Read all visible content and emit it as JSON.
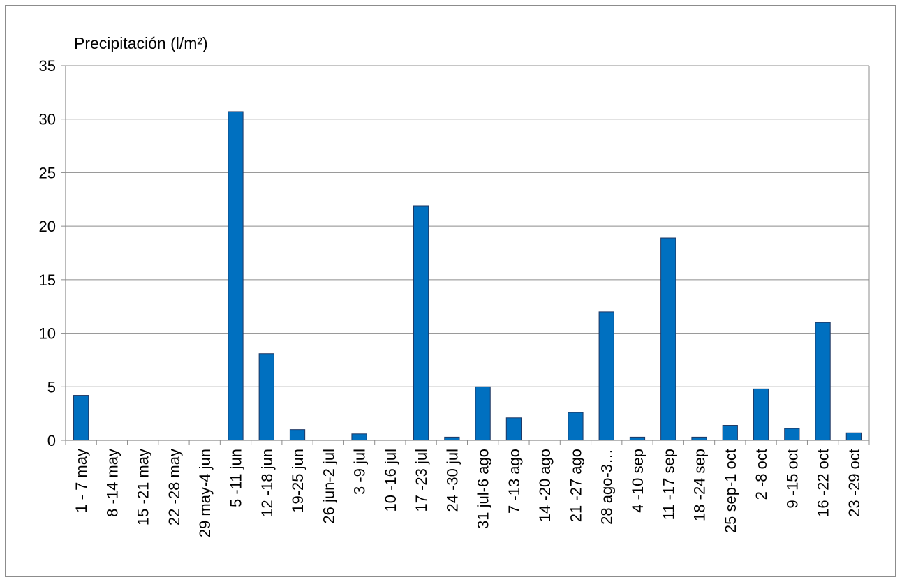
{
  "chart_data": {
    "type": "bar",
    "title": "",
    "ylabel": "Precipitación (l/m²)",
    "xlabel": "",
    "ylim": [
      0,
      35
    ],
    "yticks": [
      0,
      5,
      10,
      15,
      20,
      25,
      30,
      35
    ],
    "grid": true,
    "legend": "none",
    "bar_color": "#0070C0",
    "bar_edge_color": "#1F3864",
    "categories": [
      "1 - 7 may",
      "8 -14 may",
      "15 -21 may",
      "22 -28 may",
      "29 may-4 jun",
      "5 -11 jun",
      "12 -18 jun",
      "19-25 jun",
      "26 jun-2 jul",
      "3 -9 jul",
      "10 -16 jul",
      "17 -23 jul",
      "24 -30 jul",
      "31 jul-6 ago",
      "7 -13 ago",
      "14 -20 ago",
      "21 -27 ago",
      "28 ago-3…",
      "4 -10 sep",
      "11 -17 sep",
      "18 -24 sep",
      "25 sep-1 oct",
      "2 -8 oct",
      "9 -15 oct",
      "16 -22 oct",
      "23 -29 oct"
    ],
    "values": [
      4.2,
      0,
      0,
      0,
      0,
      30.7,
      8.1,
      1.0,
      0,
      0.6,
      0,
      21.9,
      0.3,
      5.0,
      2.1,
      0,
      2.6,
      12.0,
      0.3,
      18.9,
      0.3,
      1.4,
      4.8,
      1.1,
      11.0,
      0.7
    ]
  }
}
